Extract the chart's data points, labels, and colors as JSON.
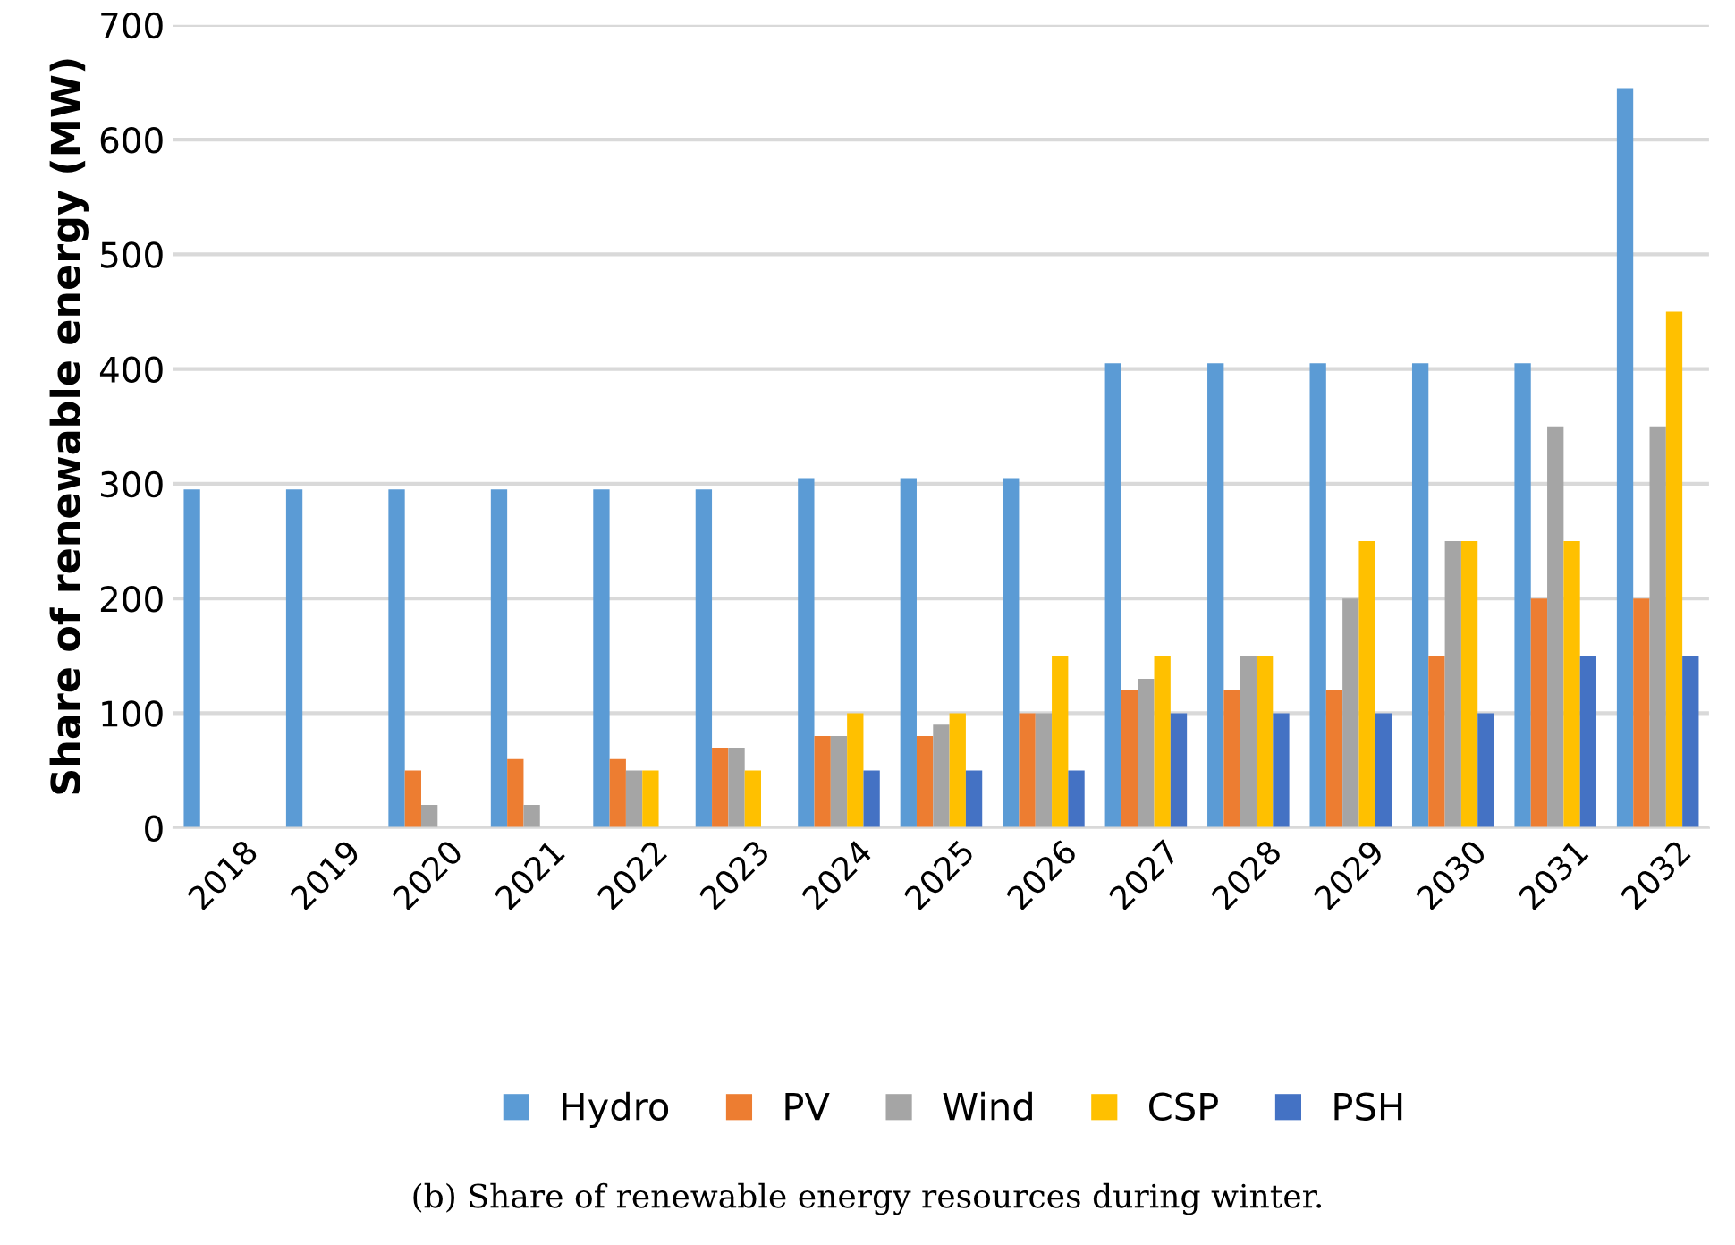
{
  "chart_data": {
    "type": "bar",
    "ylabel": "Share of renewable energy (MW)",
    "categories": [
      "2018",
      "2019",
      "2020",
      "2021",
      "2022",
      "2023",
      "2024",
      "2025",
      "2026",
      "2027",
      "2028",
      "2029",
      "2030",
      "2031",
      "2032"
    ],
    "series": [
      {
        "name": "Hydro",
        "color": "#5b9bd5",
        "values": [
          295,
          295,
          295,
          295,
          295,
          295,
          305,
          305,
          305,
          405,
          405,
          405,
          405,
          405,
          645
        ]
      },
      {
        "name": "PV",
        "color": "#ed7d31",
        "values": [
          0,
          0,
          50,
          60,
          60,
          70,
          80,
          80,
          100,
          120,
          120,
          120,
          150,
          200,
          200
        ]
      },
      {
        "name": "Wind",
        "color": "#a5a5a5",
        "values": [
          0,
          0,
          20,
          20,
          50,
          70,
          80,
          90,
          100,
          130,
          150,
          200,
          250,
          350,
          350
        ]
      },
      {
        "name": "CSP",
        "color": "#ffc000",
        "values": [
          0,
          0,
          0,
          0,
          50,
          50,
          100,
          100,
          150,
          150,
          150,
          250,
          250,
          250,
          450
        ]
      },
      {
        "name": "PSH",
        "color": "#4472c4",
        "values": [
          0,
          0,
          0,
          0,
          0,
          0,
          50,
          50,
          50,
          100,
          100,
          100,
          100,
          150,
          150
        ]
      }
    ],
    "ylim": [
      0,
      700
    ],
    "yticks": [
      0,
      100,
      200,
      300,
      400,
      500,
      600,
      700
    ],
    "grid": "y",
    "legend": "bottom",
    "annotations": [
      "(b) Share of renewable energy resources during winter."
    ]
  }
}
